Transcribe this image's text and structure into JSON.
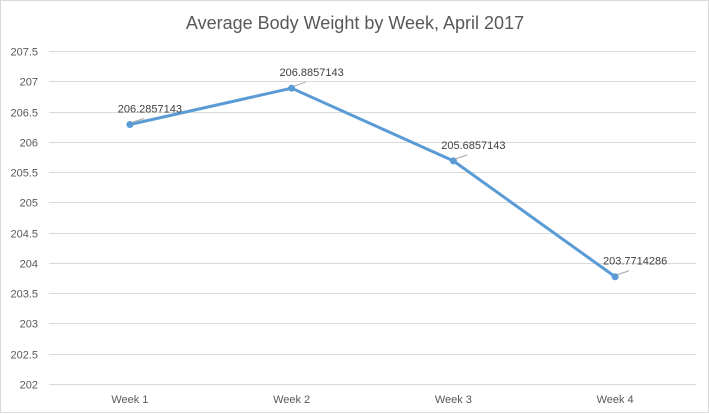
{
  "chart_data": {
    "type": "line",
    "title": "Average Body Weight by Week, April 2017",
    "xlabel": "",
    "ylabel": "",
    "categories": [
      "Week 1",
      "Week 2",
      "Week 3",
      "Week 4"
    ],
    "series": [
      {
        "values": [
          206.2857143,
          206.8857143,
          205.6857143,
          203.7714286
        ],
        "value_labels": [
          "206.2857143",
          "206.8857143",
          "205.6857143",
          "203.7714286"
        ],
        "color": "#5b9bd5"
      }
    ],
    "ylim": [
      202,
      207.5
    ],
    "yticks": [
      202,
      202.5,
      203,
      203.5,
      204,
      204.5,
      205,
      205.5,
      206,
      206.5,
      207,
      207.5
    ],
    "ytick_labels": [
      "202",
      "202.5",
      "203",
      "203.5",
      "204",
      "204.5",
      "205",
      "205.5",
      "206",
      "206.5",
      "207",
      "207.5"
    ],
    "grid": true,
    "legend": "none"
  }
}
